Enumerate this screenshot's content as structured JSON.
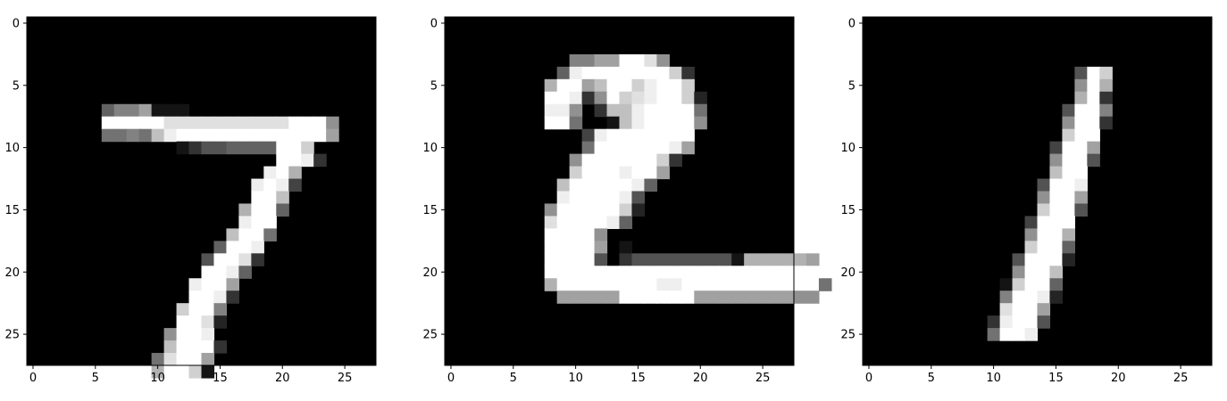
{
  "chart_data": [
    {
      "type": "heatmap",
      "title": "",
      "xlabel": "",
      "ylabel": "",
      "colormap": "gray",
      "xlim": [
        0,
        27
      ],
      "ylim": [
        0,
        27
      ],
      "x_ticks": [
        "0",
        "5",
        "10",
        "15",
        "20",
        "25"
      ],
      "y_ticks": [
        "0",
        "5",
        "10",
        "15",
        "20",
        "25"
      ],
      "grid": false,
      "rows": [
        "",
        "",
        "",
        "",
        "",
        "",
        "",
        "......5779000",
        "......FFFFFDDDDDDDDDDFFF8",
        "......6676BEFFFFFFFFFFFF9",
        "............02445555FFC",
        "....................FFE2",
        "...................EFA",
        "..................EFE3",
        "..................FFB",
        ".................AFF5",
        ".................EFF",
        "................BFF6",
        "...............5FFE",
        "..............4FFD2",
        "..............FFE5",
        ".............EFF9",
        ".............FFE2",
        "............CFF7",
        "............FFD1",
        "...........8FFE",
        "...........BFFF2",
        "..........6DFF9",
        "..........AFFC0"
      ]
    },
    {
      "type": "heatmap",
      "title": "",
      "xlabel": "",
      "ylabel": "",
      "colormap": "gray",
      "xlim": [
        0,
        27
      ],
      "ylim": [
        0,
        27
      ],
      "x_ticks": [
        "0",
        "5",
        "10",
        "15",
        "20",
        "25"
      ],
      "y_ticks": [
        "0",
        "5",
        "10",
        "15",
        "20",
        "25"
      ],
      "grid": false,
      "rows": [
        "",
        "",
        "",
        "..........7799FFD8",
        ".........5EFFFFFFFC2",
        "........AFF9BFFCEFFC",
        "........FFE28FCDEFFC1",
        "........EE8.2BBEFFFF6",
        "........FF6..0BEFFFF8",
        "...........3EFFFFFFF",
        "...........6FFFFFFE9",
        "..........8FFFFFFC2",
        "..........CFFFEFF9",
        ".........BFFFFFE5",
        ".........EFFFFE4",
        "........8FFFFFC1",
        "........DFFFFE5",
        "........FFFF8",
        "........FFFF9.0",
        "........FFFF4.2444444440AAAAA9",
        "........FFFFFFFFFFFFFFFFFFFFFF",
        "........AFFFFFFFFEEFFFFFFFFFFF6",
        ".........99999FFFFFF9999999988"
      ]
    },
    {
      "type": "heatmap",
      "title": "",
      "xlabel": "",
      "ylabel": "",
      "colormap": "gray",
      "xlim": [
        0,
        27
      ],
      "ylim": [
        0,
        27
      ],
      "x_ticks": [
        "0",
        "5",
        "10",
        "15",
        "20",
        "25"
      ],
      "y_ticks": [
        "0",
        "5",
        "10",
        "15",
        "20",
        "25"
      ],
      "grid": false,
      "rows": [
        "",
        "",
        "",
        "",
        ".................4FC",
        ".................8FA",
        ".................AF2",
        "................4FF7",
        "................8FF2",
        "................CFF",
        "...............3FF9",
        "...............8FF4",
        "...............BFF",
        "..............4FFE",
        "..............8FF9",
        "..............CFF4",
        ".............3FFF",
        ".............8FFA",
        ".............CFF5",
        "............4FFF1",
        "............8FFB",
        "...........0CFF5",
        "...........7FFE1",
        "...........DFF9",
        "..........2EFF4",
        "..........6FFE"
      ]
    }
  ]
}
